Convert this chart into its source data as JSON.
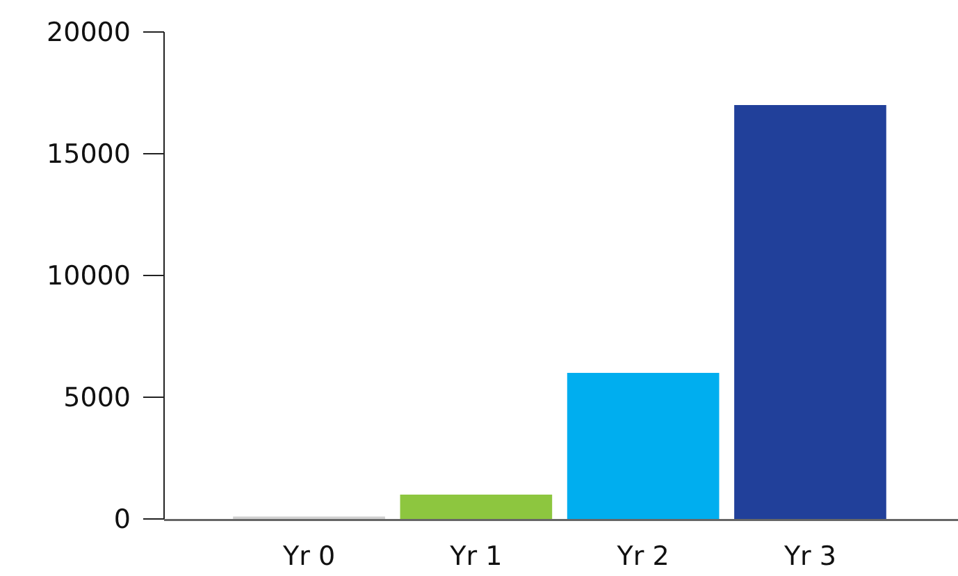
{
  "chart_data": {
    "type": "bar",
    "categories": [
      "Yr 0",
      "Yr 1",
      "Yr 2",
      "Yr 3"
    ],
    "values": [
      100,
      1000,
      6000,
      17000
    ],
    "colors": [
      "#d0d0d0",
      "#8dc63f",
      "#00aeef",
      "#21409a"
    ],
    "ylim": [
      0,
      20000
    ],
    "yticks": [
      0,
      5000,
      10000,
      15000,
      20000
    ],
    "grid": false
  }
}
